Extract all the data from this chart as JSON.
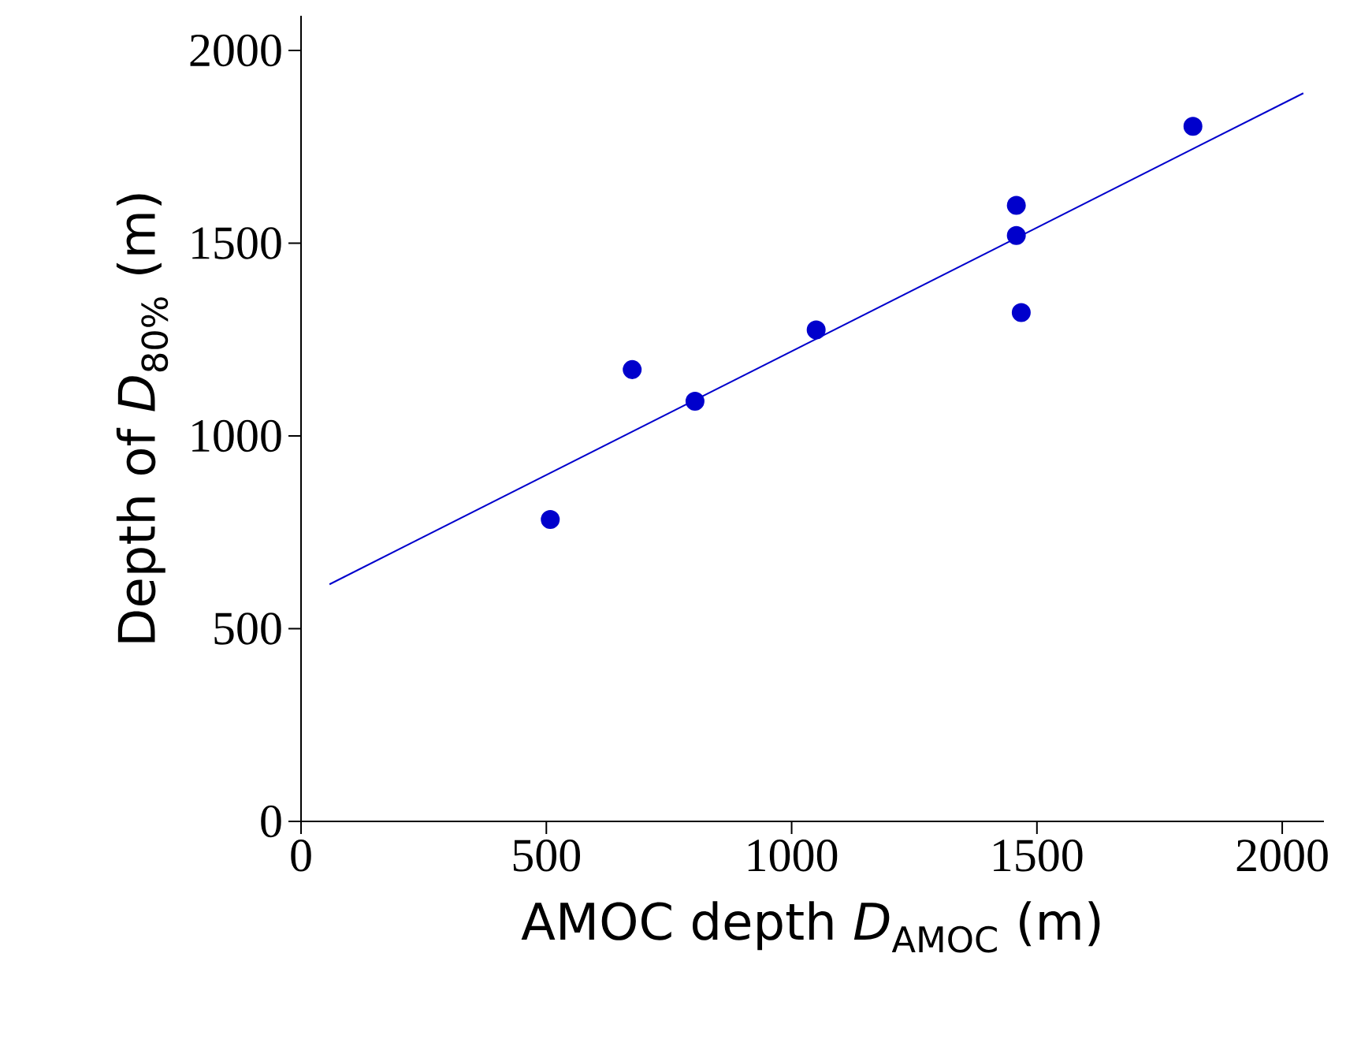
{
  "chart_data": {
    "type": "scatter",
    "xlabel": "AMOC depth *D*$_{AMOC}$ (m)",
    "ylabel": "Depth of *D*$_{80%}$ (m)",
    "xlim": [
      0,
      2085
    ],
    "ylim": [
      0,
      2090
    ],
    "xticks": [
      0,
      500,
      1000,
      1500,
      2000
    ],
    "yticks": [
      0,
      500,
      1000,
      1500,
      2000
    ],
    "marker": "circle",
    "grid": false,
    "series": [
      {
        "color": "#0000cc",
        "x": [
          508,
          675,
          803,
          1050,
          1458,
          1458,
          1468,
          1818
        ],
        "values": [
          783,
          1172,
          1090,
          1275,
          1598,
          1520,
          1320,
          1803
        ]
      },
      {
        "type": "line",
        "color": "#0000cc",
        "marker": "none",
        "x": [
          58,
          2043
        ],
        "values": [
          615,
          1889
        ]
      }
    ]
  }
}
